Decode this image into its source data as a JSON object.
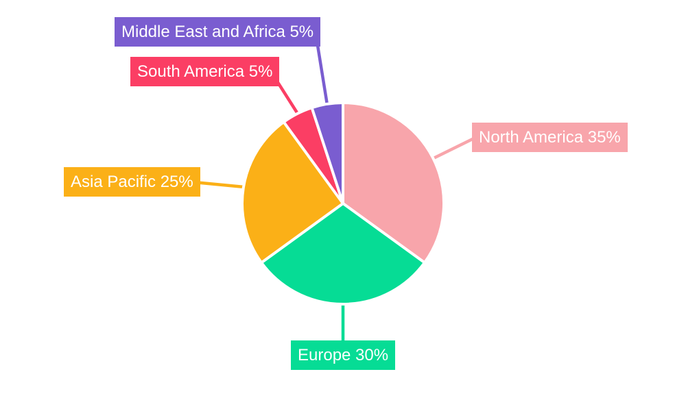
{
  "page": {
    "background_color": "#ffffff"
  },
  "chart_data": {
    "type": "pie",
    "title": "",
    "categories": [
      "North America",
      "Europe",
      "Asia Pacific",
      "South America",
      "Middle East and Africa"
    ],
    "values": [
      35,
      30,
      25,
      5,
      5
    ],
    "unit": "%",
    "colors": [
      "#F8A5AB",
      "#06DC95",
      "#FBB017",
      "#FB3E64",
      "#7A5DD0"
    ],
    "labels": [
      "North America 35%",
      "Europe 30%",
      "Asia Pacific 25%",
      "South America 5%",
      "Middle East and Africa 5%"
    ],
    "label_text_color": "#FFFFFF",
    "slice_border_color": "#FFFFFF",
    "start_angle_deg": 0,
    "direction": "clockwise",
    "legend": "none",
    "grid": "off"
  }
}
